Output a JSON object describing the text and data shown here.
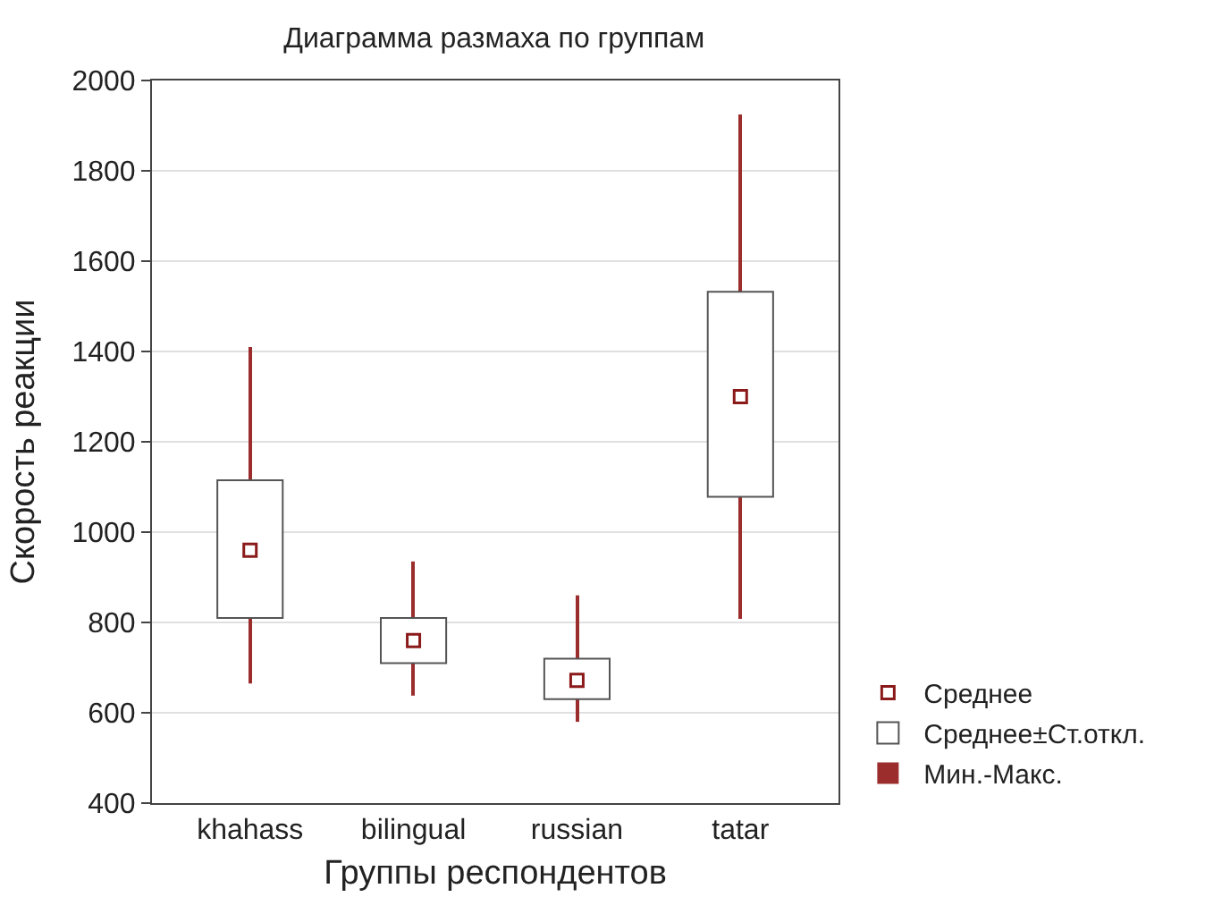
{
  "chart_data": {
    "type": "bar",
    "title": "Диаграмма размаха по группам",
    "xlabel": "Группы респондентов",
    "ylabel": "Скорость реакции",
    "categories": [
      "khahass",
      "bilingual",
      "russian",
      "tatar"
    ],
    "series": [
      {
        "name": "Среднее",
        "type": "scatter",
        "marker": "square",
        "color": "#8b1a1a",
        "values": [
          960,
          760,
          672,
          1300
        ]
      },
      {
        "name": "Среднее±Ст.откл.",
        "color": "#ffffff",
        "base": [
          810,
          710,
          630,
          1078
        ],
        "values": [
          305,
          100,
          90,
          454
        ]
      },
      {
        "name": "Мин.-Макс.",
        "color": "#9b2d2d",
        "base": [
          665,
          638,
          580,
          808
        ],
        "values": [
          745,
          297,
          280,
          1117
        ]
      }
    ],
    "ylim": [
      400,
      2000
    ],
    "yticks": [
      400,
      600,
      800,
      1000,
      1200,
      1400,
      1600,
      1800,
      2000
    ],
    "grid": "y",
    "legend": "bottom right"
  }
}
